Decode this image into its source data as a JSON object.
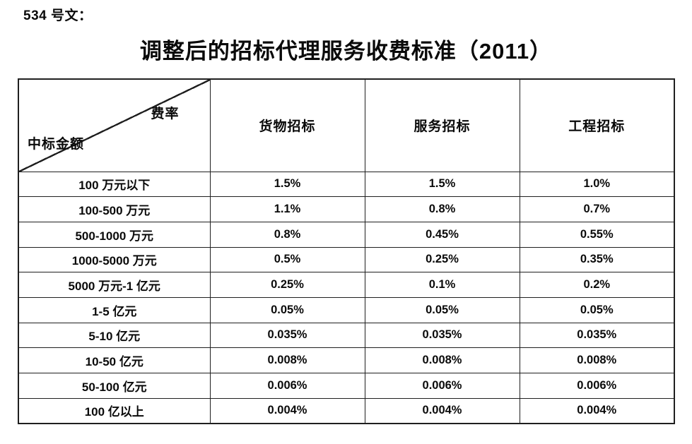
{
  "document": {
    "doc_label": "534 号文：",
    "title": "调整后的招标代理服务收费标准（2011）"
  },
  "table": {
    "corner": {
      "rate_label": "费率",
      "amount_label": "中标金额"
    },
    "columns": [
      "货物招标",
      "服务招标",
      "工程招标"
    ],
    "rows": [
      {
        "amount": "100 万元以下",
        "values": [
          "1.5%",
          "1.5%",
          "1.0%"
        ]
      },
      {
        "amount": "100-500 万元",
        "values": [
          "1.1%",
          "0.8%",
          "0.7%"
        ]
      },
      {
        "amount": "500-1000 万元",
        "values": [
          "0.8%",
          "0.45%",
          "0.55%"
        ]
      },
      {
        "amount": "1000-5000 万元",
        "values": [
          "0.5%",
          "0.25%",
          "0.35%"
        ]
      },
      {
        "amount": "5000 万元-1 亿元",
        "values": [
          "0.25%",
          "0.1%",
          "0.2%"
        ]
      },
      {
        "amount": "1-5 亿元",
        "values": [
          "0.05%",
          "0.05%",
          "0.05%"
        ]
      },
      {
        "amount": "5-10 亿元",
        "values": [
          "0.035%",
          "0.035%",
          "0.035%"
        ]
      },
      {
        "amount": "10-50 亿元",
        "values": [
          "0.008%",
          "0.008%",
          "0.008%"
        ]
      },
      {
        "amount": "50-100 亿元",
        "values": [
          "0.006%",
          "0.006%",
          "0.006%"
        ]
      },
      {
        "amount": "100 亿以上",
        "values": [
          "0.004%",
          "0.004%",
          "0.004%"
        ]
      }
    ]
  },
  "colors": {
    "text": "#000000",
    "border": "#1f1f1f",
    "background": "#ffffff"
  }
}
